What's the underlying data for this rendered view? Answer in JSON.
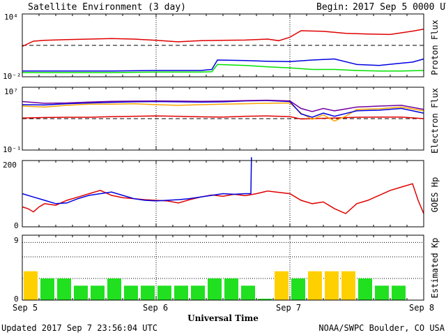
{
  "header": {
    "title": "Satellite Environment (3 day)",
    "begin_label": "Begin:",
    "begin_value": "2017 Sep 5 0000 UTC"
  },
  "footer": {
    "updated": "Updated 2017 Sep  7 23:56:04 UTC",
    "credit": "NOAA/SWPC Boulder, CO USA"
  },
  "colors": {
    "red": "#e00000",
    "blue": "#0000e0",
    "green": "#00e000",
    "orange": "#ffa500",
    "purple": "#7000a0",
    "kp_green": "#20e020",
    "kp_yellow": "#ffd000"
  },
  "chart_data": [
    {
      "type": "line",
      "panel": "proton",
      "ylabel": "Proton Flux",
      "yscale": "log",
      "ylim": [
        0.01,
        10000
      ],
      "y_tick_labels": [
        "10⁴",
        "10⁻²"
      ],
      "xlim": [
        0,
        72
      ],
      "threshold": 10,
      "series": [
        {
          "color": "#e00000",
          "x": [
            0,
            2,
            4,
            8,
            12,
            16,
            20,
            24,
            28,
            32,
            36,
            40,
            44,
            46,
            48,
            50,
            54,
            58,
            62,
            66,
            70,
            72
          ],
          "y": [
            8,
            25,
            30,
            35,
            40,
            45,
            40,
            30,
            22,
            28,
            30,
            32,
            40,
            28,
            60,
            250,
            220,
            140,
            120,
            110,
            230,
            350
          ]
        },
        {
          "color": "#0000e0",
          "x": [
            0,
            8,
            16,
            24,
            32,
            34,
            35,
            40,
            44,
            48,
            52,
            56,
            60,
            64,
            68,
            70,
            72
          ],
          "y": [
            0.035,
            0.035,
            0.035,
            0.04,
            0.04,
            0.05,
            0.4,
            0.35,
            0.3,
            0.28,
            0.4,
            0.5,
            0.15,
            0.12,
            0.2,
            0.25,
            0.5
          ]
        },
        {
          "color": "#00e000",
          "x": [
            0,
            8,
            16,
            24,
            32,
            34,
            35,
            40,
            44,
            48,
            52,
            56,
            60,
            64,
            68,
            72
          ],
          "y": [
            0.025,
            0.025,
            0.025,
            0.028,
            0.028,
            0.03,
            0.15,
            0.12,
            0.09,
            0.07,
            0.05,
            0.05,
            0.04,
            0.035,
            0.035,
            0.04
          ]
        }
      ]
    },
    {
      "type": "line",
      "panel": "electron",
      "ylabel": "Electron Flux",
      "yscale": "log",
      "ylim": [
        0.1,
        10000000
      ],
      "y_tick_labels": [
        "10⁷",
        "10⁻¹"
      ],
      "xlim": [
        0,
        72
      ],
      "threshold": 1000,
      "series": [
        {
          "color": "#e00000",
          "x": [
            0,
            4,
            8,
            12,
            16,
            20,
            24,
            28,
            32,
            36,
            40,
            44,
            48,
            50,
            52,
            54,
            56,
            60,
            64,
            68,
            72
          ],
          "y": [
            1200,
            1400,
            1500,
            1500,
            1800,
            2000,
            2200,
            2000,
            1700,
            1600,
            2000,
            2200,
            1800,
            900,
            1000,
            1100,
            1200,
            1500,
            1600,
            1600,
            1000
          ]
        },
        {
          "color": "#ffa500",
          "x": [
            0,
            4,
            8,
            12,
            16,
            20,
            24,
            28,
            32,
            36,
            40,
            44,
            48,
            50,
            52,
            54,
            56,
            58,
            60,
            64,
            68,
            72
          ],
          "y": [
            40000,
            30000,
            50000,
            70000,
            70000,
            80000,
            60000,
            50000,
            60000,
            70000,
            80000,
            90000,
            100000,
            5000,
            800,
            3000,
            500,
            2000,
            15000,
            18000,
            30000,
            10000
          ]
        },
        {
          "color": "#0000e0",
          "x": [
            0,
            4,
            8,
            12,
            16,
            20,
            24,
            28,
            32,
            36,
            40,
            44,
            48,
            50,
            52,
            54,
            56,
            60,
            64,
            68,
            72
          ],
          "y": [
            60000,
            55000,
            80000,
            100000,
            120000,
            140000,
            150000,
            140000,
            130000,
            140000,
            180000,
            200000,
            150000,
            4000,
            1500,
            5000,
            2000,
            10000,
            12000,
            20000,
            5000
          ]
        },
        {
          "color": "#7000a0",
          "x": [
            0,
            4,
            8,
            12,
            16,
            20,
            24,
            28,
            32,
            36,
            40,
            44,
            48,
            50,
            52,
            54,
            56,
            60,
            64,
            68,
            72
          ],
          "y": [
            150000,
            90000,
            100000,
            130000,
            160000,
            170000,
            180000,
            170000,
            160000,
            170000,
            200000,
            220000,
            180000,
            20000,
            8000,
            20000,
            10000,
            30000,
            40000,
            50000,
            15000
          ]
        }
      ]
    },
    {
      "type": "line",
      "panel": "goes-hp",
      "ylabel": "GOES Hp",
      "yscale": "linear",
      "ylim": [
        0,
        200
      ],
      "y_tick_labels": [
        "200",
        "0"
      ],
      "xlim": [
        0,
        72
      ],
      "series": [
        {
          "color": "#e00000",
          "x": [
            0,
            1,
            2,
            3,
            4,
            6,
            8,
            10,
            12,
            14,
            16,
            18,
            20,
            22,
            24,
            26,
            28,
            30,
            32,
            34,
            36,
            38,
            40,
            42,
            44,
            46,
            48,
            50,
            52,
            54,
            56,
            58,
            60,
            62,
            64,
            66,
            68,
            70,
            71,
            72
          ],
          "y": [
            60,
            55,
            45,
            60,
            70,
            65,
            80,
            90,
            100,
            110,
            95,
            88,
            85,
            82,
            80,
            78,
            72,
            82,
            90,
            96,
            92,
            98,
            94,
            100,
            108,
            104,
            100,
            80,
            70,
            75,
            55,
            40,
            70,
            80,
            95,
            110,
            120,
            130,
            80,
            40
          ]
        },
        {
          "color": "#0000e0",
          "x": [
            0,
            2,
            4,
            6,
            8,
            10,
            12,
            14,
            16,
            18,
            20,
            22,
            24,
            26,
            28,
            30,
            32,
            34,
            36,
            38,
            40,
            41,
            41.1
          ],
          "y": [
            100,
            90,
            80,
            70,
            72,
            85,
            95,
            100,
            105,
            95,
            85,
            80,
            78,
            80,
            82,
            85,
            90,
            95,
            100,
            98,
            100,
            100,
            210
          ]
        }
      ]
    },
    {
      "type": "bar",
      "panel": "kp",
      "ylabel": "Estimated Kp",
      "ylim": [
        0,
        9
      ],
      "y_tick_labels": [
        "9",
        "0"
      ],
      "xlim": [
        0,
        72
      ],
      "bar_width_hours": 3,
      "values": [
        4,
        3,
        3,
        2,
        2,
        3,
        2,
        2,
        2,
        2,
        2,
        3,
        3,
        2,
        0,
        4,
        3,
        4,
        4,
        4,
        3,
        2,
        2
      ],
      "colors": [
        "#ffd000",
        "#20e020",
        "#20e020",
        "#20e020",
        "#20e020",
        "#20e020",
        "#20e020",
        "#20e020",
        "#20e020",
        "#20e020",
        "#20e020",
        "#20e020",
        "#20e020",
        "#20e020",
        "#20e020",
        "#ffd000",
        "#20e020",
        "#ffd000",
        "#ffd000",
        "#ffd000",
        "#20e020",
        "#20e020",
        "#20e020"
      ]
    }
  ],
  "x_axis": {
    "ticks": [
      "Sep 5",
      "Sep 6",
      "Sep 7",
      "Sep 8"
    ],
    "label": "Universal Time"
  }
}
